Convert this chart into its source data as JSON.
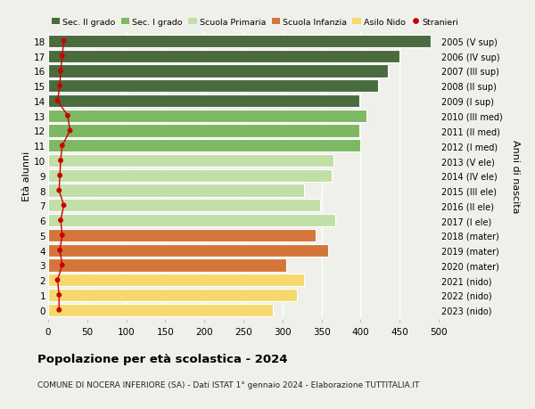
{
  "ages": [
    18,
    17,
    16,
    15,
    14,
    13,
    12,
    11,
    10,
    9,
    8,
    7,
    6,
    5,
    4,
    3,
    2,
    1,
    0
  ],
  "labels_right": [
    "2005 (V sup)",
    "2006 (IV sup)",
    "2007 (III sup)",
    "2008 (II sup)",
    "2009 (I sup)",
    "2010 (III med)",
    "2011 (II med)",
    "2012 (I med)",
    "2013 (V ele)",
    "2014 (IV ele)",
    "2015 (III ele)",
    "2016 (II ele)",
    "2017 (I ele)",
    "2018 (mater)",
    "2019 (mater)",
    "2020 (mater)",
    "2021 (nido)",
    "2022 (nido)",
    "2023 (nido)"
  ],
  "bar_values": [
    490,
    450,
    435,
    422,
    398,
    408,
    398,
    400,
    365,
    363,
    328,
    348,
    368,
    342,
    358,
    305,
    328,
    318,
    288
  ],
  "bar_colors": [
    "#4a6b3e",
    "#4a6b3e",
    "#4a6b3e",
    "#4a6b3e",
    "#4a6b3e",
    "#7db862",
    "#7db862",
    "#7db862",
    "#c2dfa8",
    "#c2dfa8",
    "#c2dfa8",
    "#c2dfa8",
    "#c2dfa8",
    "#d4763a",
    "#d4763a",
    "#d4763a",
    "#f5d96e",
    "#f5d96e",
    "#f5d96e"
  ],
  "stranieri_values": [
    20,
    18,
    16,
    15,
    12,
    25,
    28,
    18,
    16,
    15,
    14,
    20,
    16,
    18,
    15,
    18,
    12,
    14,
    14
  ],
  "legend_labels": [
    "Sec. II grado",
    "Sec. I grado",
    "Scuola Primaria",
    "Scuola Infanzia",
    "Asilo Nido",
    "Stranieri"
  ],
  "legend_colors": [
    "#4a6b3e",
    "#7db862",
    "#c2dfa8",
    "#d4763a",
    "#f5d96e",
    "#cc0000"
  ],
  "title": "Popolazione per età scolastica - 2024",
  "subtitle": "COMUNE DI NOCERA INFERIORE (SA) - Dati ISTAT 1° gennaio 2024 - Elaborazione TUTTITALIA.IT",
  "ylabel_left": "Età alunni",
  "ylabel_right": "Anni di nascita",
  "xlim": [
    0,
    500
  ],
  "xticks": [
    0,
    50,
    100,
    150,
    200,
    250,
    300,
    350,
    400,
    450,
    500
  ],
  "bg_color": "#f0f0eb",
  "bar_height": 0.85,
  "dot_color": "#cc0000",
  "line_color": "#cc0000"
}
